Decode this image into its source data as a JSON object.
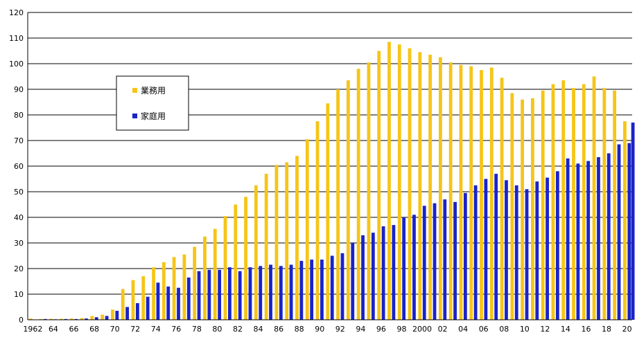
{
  "chart_data": {
    "type": "bar",
    "grid": true,
    "legend_position": "left",
    "ylim": [
      0,
      120
    ],
    "y_ticks": [
      "0",
      "10",
      "20",
      "30",
      "40",
      "50",
      "60",
      "70",
      "80",
      "90",
      "100",
      "110",
      "120"
    ],
    "categories": [
      "1962",
      "63",
      "64",
      "65",
      "66",
      "67",
      "68",
      "69",
      "70",
      "71",
      "72",
      "73",
      "74",
      "75",
      "76",
      "77",
      "78",
      "79",
      "80",
      "81",
      "82",
      "83",
      "84",
      "85",
      "86",
      "87",
      "88",
      "89",
      "90",
      "91",
      "92",
      "93",
      "94",
      "95",
      "96",
      "97",
      "98",
      "99",
      "2000",
      "01",
      "02",
      "03",
      "04",
      "05",
      "06",
      "07",
      "08",
      "09",
      "10",
      "11",
      "12",
      "13",
      "14",
      "15",
      "16",
      "17",
      "18",
      "19",
      "20"
    ],
    "x_tick_labels": [
      "1962",
      "",
      "64",
      "",
      "66",
      "",
      "68",
      "",
      "70",
      "",
      "72",
      "",
      "74",
      "",
      "76",
      "",
      "78",
      "",
      "80",
      "",
      "82",
      "",
      "84",
      "",
      "86",
      "",
      "88",
      "",
      "90",
      "",
      "92",
      "",
      "94",
      "",
      "96",
      "",
      "98",
      "",
      "2000",
      "",
      "02",
      "",
      "04",
      "",
      "06",
      "",
      "08",
      "",
      "10",
      "",
      "12",
      "",
      "14",
      "",
      "16",
      "",
      "18",
      "",
      "20"
    ],
    "series": [
      {
        "name": "業務用",
        "color": "#f5c518",
        "values": [
          0.5,
          0.3,
          0.4,
          0.4,
          0.5,
          0.7,
          1.5,
          2.0,
          4.0,
          12.0,
          15.5,
          17.0,
          20.5,
          22.5,
          24.5,
          25.5,
          28.5,
          32.5,
          35.5,
          40.5,
          45.0,
          48.0,
          52.5,
          57.0,
          60.5,
          61.5,
          64.0,
          70.5,
          77.5,
          84.5,
          90.0,
          93.5,
          98.0,
          100.5,
          105.0,
          108.5,
          107.5,
          106.0,
          104.5,
          103.5,
          102.5,
          100.5,
          99.5,
          99.0,
          97.5,
          98.5,
          94.5,
          88.5,
          86.0,
          86.5,
          89.5,
          92.0,
          93.5,
          90.5,
          92.0,
          95.0,
          90.5,
          89.5,
          77.5
        ]
      },
      {
        "name": "家庭用",
        "color": "#1a23c8",
        "values": [
          0.0,
          0.3,
          0.2,
          0.3,
          0.3,
          0.5,
          1.0,
          1.5,
          3.5,
          5.0,
          6.5,
          9.0,
          14.5,
          13.0,
          12.5,
          16.5,
          19.0,
          19.5,
          19.5,
          20.5,
          19.0,
          20.5,
          21.0,
          21.5,
          21.0,
          21.5,
          23.0,
          23.5,
          23.5,
          25.0,
          26.0,
          30.0,
          33.0,
          34.0,
          36.5,
          37.0,
          40.0,
          41.0,
          44.5,
          45.5,
          47.0,
          46.0,
          49.5,
          52.5,
          55.0,
          57.0,
          54.5,
          52.5,
          51.0,
          54.0,
          55.5,
          58.0,
          63.0,
          61.0,
          62.0,
          63.5,
          65.0,
          68.5,
          69.0
        ]
      }
    ],
    "final_extra": {
      "category": "20",
      "series": "家庭用",
      "value": 77.0
    }
  }
}
